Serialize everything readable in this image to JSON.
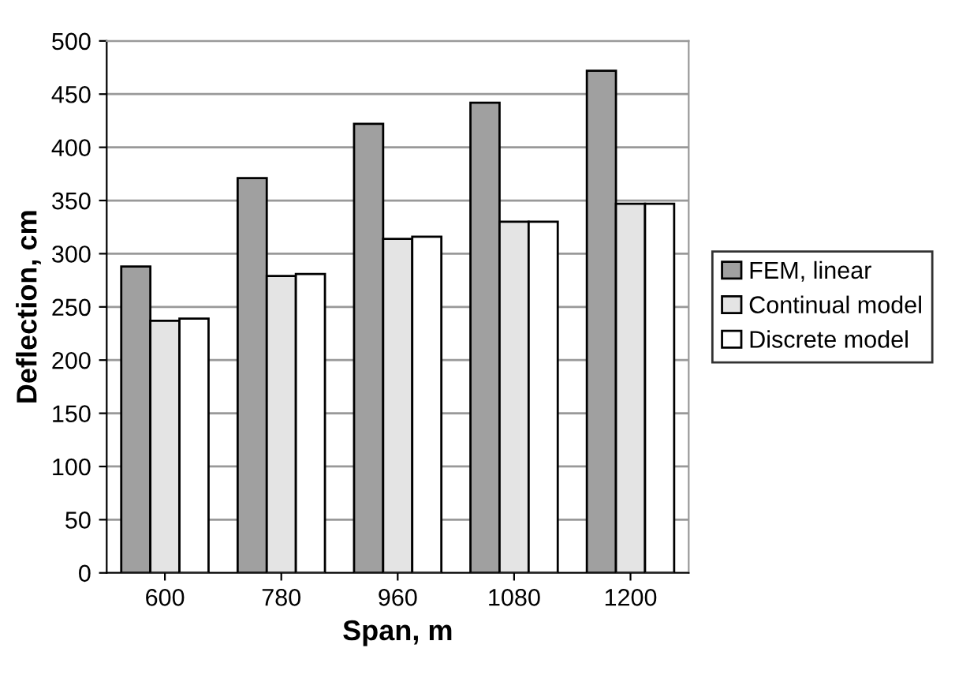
{
  "chart_data": {
    "type": "bar",
    "xlabel": "Span, m",
    "ylabel": "Deflection, cm",
    "categories": [
      "600",
      "780",
      "960",
      "1080",
      "1200"
    ],
    "series": [
      {
        "name": "FEM, linear",
        "color": "#a0a0a0",
        "values": [
          288,
          371,
          422,
          442,
          472
        ]
      },
      {
        "name": "Continual model",
        "color": "#e4e4e4",
        "values": [
          237,
          279,
          314,
          330,
          347
        ]
      },
      {
        "name": "Discrete model",
        "color": "#ffffff",
        "values": [
          239,
          281,
          316,
          330,
          347
        ]
      }
    ],
    "ylim": [
      0,
      500
    ],
    "yticks": [
      0,
      50,
      100,
      150,
      200,
      250,
      300,
      350,
      400,
      450,
      500
    ],
    "grid": "y",
    "legend": "right"
  }
}
